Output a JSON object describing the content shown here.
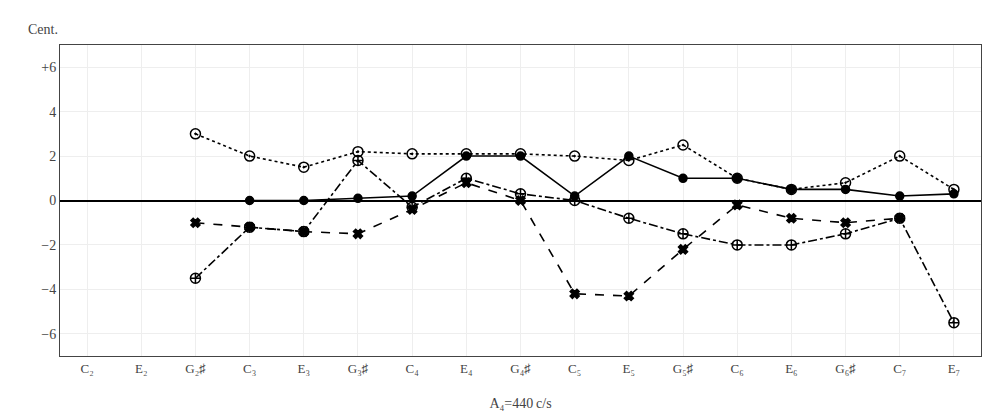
{
  "chart_data": {
    "type": "line",
    "categories": [
      "C₂",
      "E₂",
      "G₂♯",
      "C₃",
      "E₃",
      "G₃♯",
      "C₄",
      "E₄",
      "G₄♯",
      "C₅",
      "E₅",
      "G₅♯",
      "C₆",
      "E₆",
      "G₆♯",
      "C₇",
      "E₇"
    ],
    "series": [
      {
        "color": "#000000",
        "line_style": "solid",
        "marker": "circle",
        "values": [
          null,
          null,
          null,
          0.0,
          0.0,
          0.1,
          0.2,
          2.0,
          2.0,
          0.2,
          2.0,
          1.0,
          1.0,
          0.5,
          0.5,
          0.2,
          0.3
        ]
      },
      {
        "color": "#000000",
        "line_style": "dot",
        "marker": "circle-open-dot",
        "values": [
          null,
          null,
          3.0,
          2.0,
          1.5,
          2.2,
          2.1,
          2.1,
          2.1,
          2.0,
          1.8,
          2.5,
          1.0,
          0.5,
          0.8,
          2.0,
          0.5
        ]
      },
      {
        "color": "#000000",
        "line_style": "dash",
        "marker": "x",
        "values": [
          null,
          null,
          -1.0,
          -1.2,
          -1.4,
          -1.5,
          -0.4,
          0.8,
          0.0,
          -4.2,
          -4.3,
          -2.2,
          -0.2,
          -0.8,
          -1.0,
          -0.8,
          null
        ]
      },
      {
        "color": "#000000",
        "line_style": "dashdot",
        "marker": "circle-cross-open",
        "values": [
          null,
          null,
          -3.5,
          -1.2,
          -1.4,
          1.8,
          -0.3,
          1.0,
          0.3,
          0.0,
          -0.8,
          -1.5,
          -2.0,
          -2.0,
          -1.5,
          -0.8,
          -5.5
        ]
      }
    ],
    "xlabel": "A₄=440 c/s",
    "ylabel": "Cent.",
    "ylim": [
      -7,
      7
    ],
    "yticks": [
      {
        "value": 6,
        "label": "+6"
      },
      4,
      2,
      0,
      {
        "value": -2,
        "label": "−2"
      },
      {
        "value": -4,
        "label": "−4"
      },
      {
        "value": -6,
        "label": "−6"
      }
    ],
    "grid": true
  }
}
